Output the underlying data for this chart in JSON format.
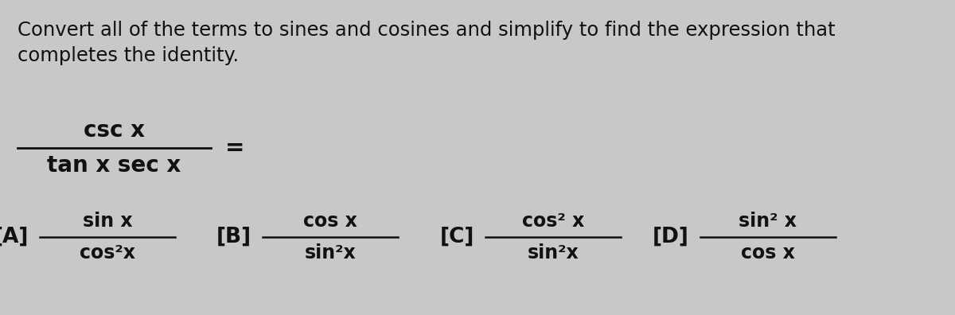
{
  "background_color": "#c8c8c8",
  "text_color": "#111111",
  "title_line1": "Convert all of the terms to sines and cosines and simplify to find the expression that",
  "title_line2": "completes the identity.",
  "main_numerator": "csc x",
  "main_denominator": "tan x sec x",
  "equals": "=",
  "options": [
    {
      "label": "[A]",
      "numerator": "sin x",
      "denominator": "cos²x"
    },
    {
      "label": "[B]",
      "numerator": "cos x",
      "denominator": "sin²x"
    },
    {
      "label": "[C]",
      "numerator": "cos² x",
      "denominator": "sin²x"
    },
    {
      "label": "[D]",
      "numerator": "sin² x",
      "denominator": "cos x"
    }
  ],
  "figsize": [
    12.0,
    3.96
  ],
  "dpi": 100
}
